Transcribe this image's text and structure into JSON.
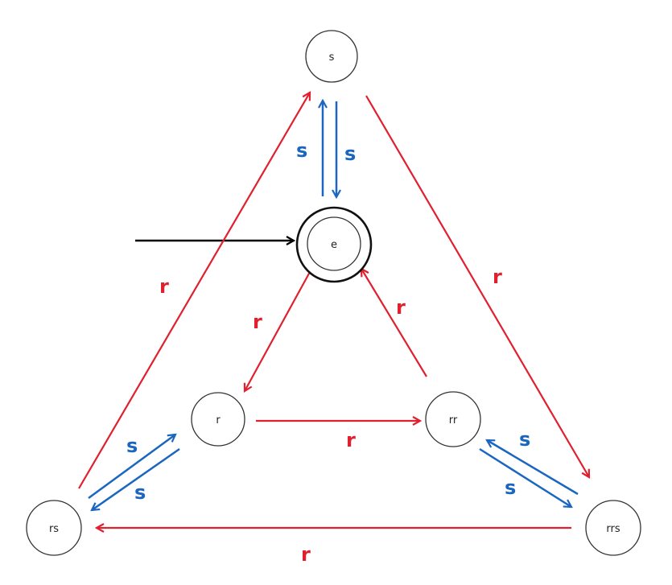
{
  "colors": {
    "r_edge": "#e0202e",
    "s_edge": "#1a66c0",
    "start_arrow": "#000000",
    "node_stroke": "#333333"
  },
  "nodes": {
    "s": "s",
    "e": "e",
    "r": "r",
    "rr": "rr",
    "rs": "rs",
    "rrs": "rrs"
  },
  "edges": {
    "s_to_e": "s",
    "e_to_s": "s",
    "e_to_r": "r",
    "rr_to_e": "r",
    "r_to_rr": "r",
    "r_to_rs": "s",
    "rs_to_r": "s",
    "rr_to_rrs": "s",
    "rrs_to_rr": "s",
    "rrs_to_rs": "r",
    "rs_to_s": "r",
    "s_to_rrs": "r"
  },
  "start_state": "e",
  "accepting_state": "e"
}
